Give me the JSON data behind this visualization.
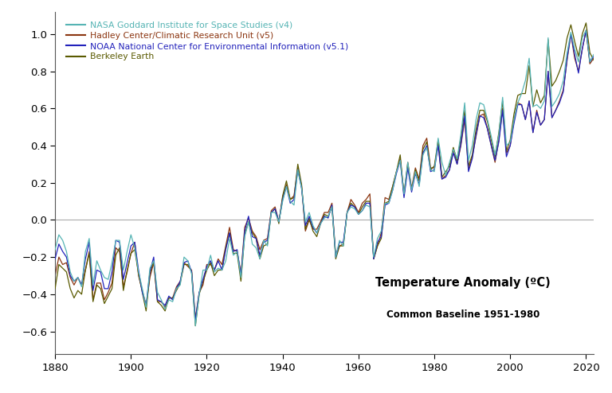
{
  "annotation_line1": "Temperature Anomaly (ºC)",
  "annotation_line2": "Common Baseline 1951-1980",
  "xlim": [
    1880,
    2022
  ],
  "ylim": [
    -0.72,
    1.12
  ],
  "yticks": [
    -0.6,
    -0.4,
    -0.2,
    0.0,
    0.2,
    0.4,
    0.6,
    0.8,
    1.0
  ],
  "xticks": [
    1880,
    1900,
    1920,
    1940,
    1960,
    1980,
    2000,
    2020
  ],
  "legend": [
    {
      "label": "NASA Goddard Institute for Space Studies (v4)",
      "color": "#56b4b4"
    },
    {
      "label": "Hadley Center/Climatic Research Unit (v5)",
      "color": "#8B3510"
    },
    {
      "label": "NOAA National Center for Environmental Information (v5.1)",
      "color": "#2222bb"
    },
    {
      "label": "Berkeley Earth",
      "color": "#5a5a00"
    }
  ],
  "years": [
    1880,
    1881,
    1882,
    1883,
    1884,
    1885,
    1886,
    1887,
    1888,
    1889,
    1890,
    1891,
    1892,
    1893,
    1894,
    1895,
    1896,
    1897,
    1898,
    1899,
    1900,
    1901,
    1902,
    1903,
    1904,
    1905,
    1906,
    1907,
    1908,
    1909,
    1910,
    1911,
    1912,
    1913,
    1914,
    1915,
    1916,
    1917,
    1918,
    1919,
    1920,
    1921,
    1922,
    1923,
    1924,
    1925,
    1926,
    1927,
    1928,
    1929,
    1930,
    1931,
    1932,
    1933,
    1934,
    1935,
    1936,
    1937,
    1938,
    1939,
    1940,
    1941,
    1942,
    1943,
    1944,
    1945,
    1946,
    1947,
    1948,
    1949,
    1950,
    1951,
    1952,
    1953,
    1954,
    1955,
    1956,
    1957,
    1958,
    1959,
    1960,
    1961,
    1962,
    1963,
    1964,
    1965,
    1966,
    1967,
    1968,
    1969,
    1970,
    1971,
    1972,
    1973,
    1974,
    1975,
    1976,
    1977,
    1978,
    1979,
    1980,
    1981,
    1982,
    1983,
    1984,
    1985,
    1986,
    1987,
    1988,
    1989,
    1990,
    1991,
    1992,
    1993,
    1994,
    1995,
    1996,
    1997,
    1998,
    1999,
    2000,
    2001,
    2002,
    2003,
    2004,
    2005,
    2006,
    2007,
    2008,
    2009,
    2010,
    2011,
    2012,
    2013,
    2014,
    2015,
    2016,
    2017,
    2018,
    2019,
    2020,
    2021,
    2022
  ],
  "giss": [
    -0.16,
    -0.08,
    -0.11,
    -0.17,
    -0.28,
    -0.33,
    -0.31,
    -0.36,
    -0.17,
    -0.1,
    -0.35,
    -0.22,
    -0.27,
    -0.31,
    -0.32,
    -0.23,
    -0.11,
    -0.11,
    -0.27,
    -0.17,
    -0.08,
    -0.15,
    -0.28,
    -0.37,
    -0.47,
    -0.26,
    -0.22,
    -0.39,
    -0.43,
    -0.48,
    -0.43,
    -0.44,
    -0.37,
    -0.35,
    -0.2,
    -0.22,
    -0.29,
    -0.57,
    -0.4,
    -0.27,
    -0.27,
    -0.19,
    -0.28,
    -0.26,
    -0.27,
    -0.22,
    -0.1,
    -0.19,
    -0.17,
    -0.31,
    -0.09,
    -0.01,
    -0.13,
    -0.15,
    -0.21,
    -0.11,
    -0.14,
    0.04,
    0.04,
    -0.01,
    0.1,
    0.18,
    0.1,
    0.08,
    0.27,
    0.17,
    -0.01,
    0.04,
    -0.03,
    -0.07,
    -0.02,
    0.01,
    0.02,
    0.07,
    -0.2,
    -0.11,
    -0.14,
    0.04,
    0.07,
    0.06,
    0.03,
    0.05,
    0.08,
    0.07,
    -0.2,
    -0.1,
    -0.06,
    0.09,
    0.09,
    0.16,
    0.26,
    0.32,
    0.14,
    0.31,
    0.16,
    0.26,
    0.18,
    0.35,
    0.39,
    0.27,
    0.26,
    0.44,
    0.31,
    0.24,
    0.31,
    0.38,
    0.33,
    0.46,
    0.63,
    0.32,
    0.4,
    0.54,
    0.63,
    0.62,
    0.54,
    0.45,
    0.35,
    0.46,
    0.66,
    0.4,
    0.42,
    0.54,
    0.63,
    0.68,
    0.75,
    0.87,
    0.61,
    0.62,
    0.6,
    0.64,
    0.98,
    0.61,
    0.64,
    0.68,
    0.75,
    0.9,
    1.01,
    0.92,
    0.85,
    0.98,
    1.02,
    0.85,
    0.89
  ],
  "hadcrut": [
    -0.3,
    -0.2,
    -0.24,
    -0.23,
    -0.31,
    -0.35,
    -0.31,
    -0.35,
    -0.27,
    -0.17,
    -0.43,
    -0.34,
    -0.34,
    -0.43,
    -0.39,
    -0.34,
    -0.15,
    -0.17,
    -0.36,
    -0.28,
    -0.18,
    -0.12,
    -0.3,
    -0.38,
    -0.46,
    -0.31,
    -0.23,
    -0.44,
    -0.44,
    -0.47,
    -0.42,
    -0.42,
    -0.36,
    -0.33,
    -0.23,
    -0.25,
    -0.27,
    -0.53,
    -0.39,
    -0.35,
    -0.24,
    -0.24,
    -0.27,
    -0.21,
    -0.24,
    -0.14,
    -0.04,
    -0.16,
    -0.17,
    -0.29,
    -0.04,
    0.01,
    -0.06,
    -0.09,
    -0.16,
    -0.11,
    -0.1,
    0.05,
    0.07,
    -0.01,
    0.12,
    0.19,
    0.11,
    0.13,
    0.28,
    0.18,
    -0.06,
    0.0,
    -0.05,
    -0.05,
    -0.01,
    0.04,
    0.04,
    0.09,
    -0.19,
    -0.14,
    -0.13,
    0.04,
    0.11,
    0.08,
    0.04,
    0.09,
    0.11,
    0.14,
    -0.21,
    -0.14,
    -0.07,
    0.12,
    0.11,
    0.18,
    0.26,
    0.33,
    0.14,
    0.31,
    0.17,
    0.28,
    0.22,
    0.4,
    0.44,
    0.28,
    0.28,
    0.41,
    0.22,
    0.24,
    0.27,
    0.38,
    0.3,
    0.4,
    0.54,
    0.27,
    0.34,
    0.45,
    0.56,
    0.57,
    0.49,
    0.4,
    0.31,
    0.43,
    0.6,
    0.36,
    0.4,
    0.54,
    0.63,
    0.62,
    0.54,
    0.64,
    0.47,
    0.59,
    0.51,
    0.54,
    0.8,
    0.55,
    0.59,
    0.64,
    0.7,
    0.86,
    1.0,
    0.87,
    0.8,
    0.92,
    1.02,
    0.84,
    0.87
  ],
  "noaa": [
    -0.21,
    -0.13,
    -0.17,
    -0.2,
    -0.3,
    -0.33,
    -0.31,
    -0.35,
    -0.21,
    -0.12,
    -0.38,
    -0.27,
    -0.28,
    -0.37,
    -0.37,
    -0.28,
    -0.11,
    -0.12,
    -0.32,
    -0.23,
    -0.14,
    -0.12,
    -0.27,
    -0.39,
    -0.46,
    -0.28,
    -0.2,
    -0.43,
    -0.44,
    -0.46,
    -0.41,
    -0.43,
    -0.37,
    -0.33,
    -0.23,
    -0.22,
    -0.28,
    -0.54,
    -0.39,
    -0.32,
    -0.25,
    -0.22,
    -0.27,
    -0.22,
    -0.27,
    -0.16,
    -0.07,
    -0.17,
    -0.16,
    -0.3,
    -0.06,
    0.02,
    -0.09,
    -0.1,
    -0.19,
    -0.12,
    -0.11,
    0.04,
    0.06,
    -0.01,
    0.11,
    0.18,
    0.09,
    0.11,
    0.27,
    0.17,
    -0.03,
    0.02,
    -0.04,
    -0.07,
    -0.02,
    0.02,
    0.01,
    0.08,
    -0.2,
    -0.12,
    -0.12,
    0.04,
    0.08,
    0.07,
    0.03,
    0.05,
    0.09,
    0.09,
    -0.21,
    -0.12,
    -0.09,
    0.08,
    0.09,
    0.16,
    0.25,
    0.32,
    0.12,
    0.28,
    0.15,
    0.25,
    0.19,
    0.36,
    0.4,
    0.26,
    0.27,
    0.4,
    0.22,
    0.23,
    0.27,
    0.36,
    0.3,
    0.41,
    0.56,
    0.26,
    0.33,
    0.46,
    0.56,
    0.55,
    0.49,
    0.4,
    0.32,
    0.42,
    0.59,
    0.34,
    0.4,
    0.52,
    0.62,
    0.62,
    0.54,
    0.64,
    0.47,
    0.58,
    0.51,
    0.54,
    0.8,
    0.55,
    0.59,
    0.63,
    0.69,
    0.87,
    1.0,
    0.89,
    0.79,
    0.92,
    1.02,
    0.85,
    0.88
  ],
  "berkeley": [
    -0.37,
    -0.24,
    -0.26,
    -0.28,
    -0.37,
    -0.42,
    -0.38,
    -0.4,
    -0.27,
    -0.18,
    -0.44,
    -0.35,
    -0.37,
    -0.45,
    -0.41,
    -0.37,
    -0.19,
    -0.15,
    -0.38,
    -0.27,
    -0.18,
    -0.16,
    -0.29,
    -0.39,
    -0.49,
    -0.29,
    -0.22,
    -0.44,
    -0.46,
    -0.49,
    -0.42,
    -0.42,
    -0.38,
    -0.34,
    -0.24,
    -0.24,
    -0.28,
    -0.57,
    -0.4,
    -0.33,
    -0.27,
    -0.23,
    -0.3,
    -0.27,
    -0.27,
    -0.15,
    -0.07,
    -0.18,
    -0.18,
    -0.33,
    -0.08,
    -0.01,
    -0.07,
    -0.1,
    -0.21,
    -0.14,
    -0.13,
    0.04,
    0.06,
    -0.02,
    0.13,
    0.21,
    0.11,
    0.12,
    0.3,
    0.19,
    -0.05,
    0.01,
    -0.06,
    -0.09,
    -0.02,
    0.03,
    0.02,
    0.07,
    -0.21,
    -0.14,
    -0.14,
    0.04,
    0.09,
    0.07,
    0.03,
    0.07,
    0.1,
    0.1,
    -0.21,
    -0.14,
    -0.1,
    0.09,
    0.1,
    0.18,
    0.26,
    0.35,
    0.13,
    0.3,
    0.16,
    0.27,
    0.21,
    0.38,
    0.42,
    0.27,
    0.29,
    0.43,
    0.23,
    0.26,
    0.29,
    0.39,
    0.32,
    0.44,
    0.59,
    0.29,
    0.35,
    0.49,
    0.59,
    0.59,
    0.53,
    0.43,
    0.34,
    0.47,
    0.64,
    0.37,
    0.43,
    0.57,
    0.67,
    0.68,
    0.68,
    0.83,
    0.61,
    0.7,
    0.63,
    0.67,
    0.97,
    0.72,
    0.75,
    0.8,
    0.86,
    0.98,
    1.05,
    0.96,
    0.88,
    1.0,
    1.06,
    0.9,
    0.86
  ]
}
